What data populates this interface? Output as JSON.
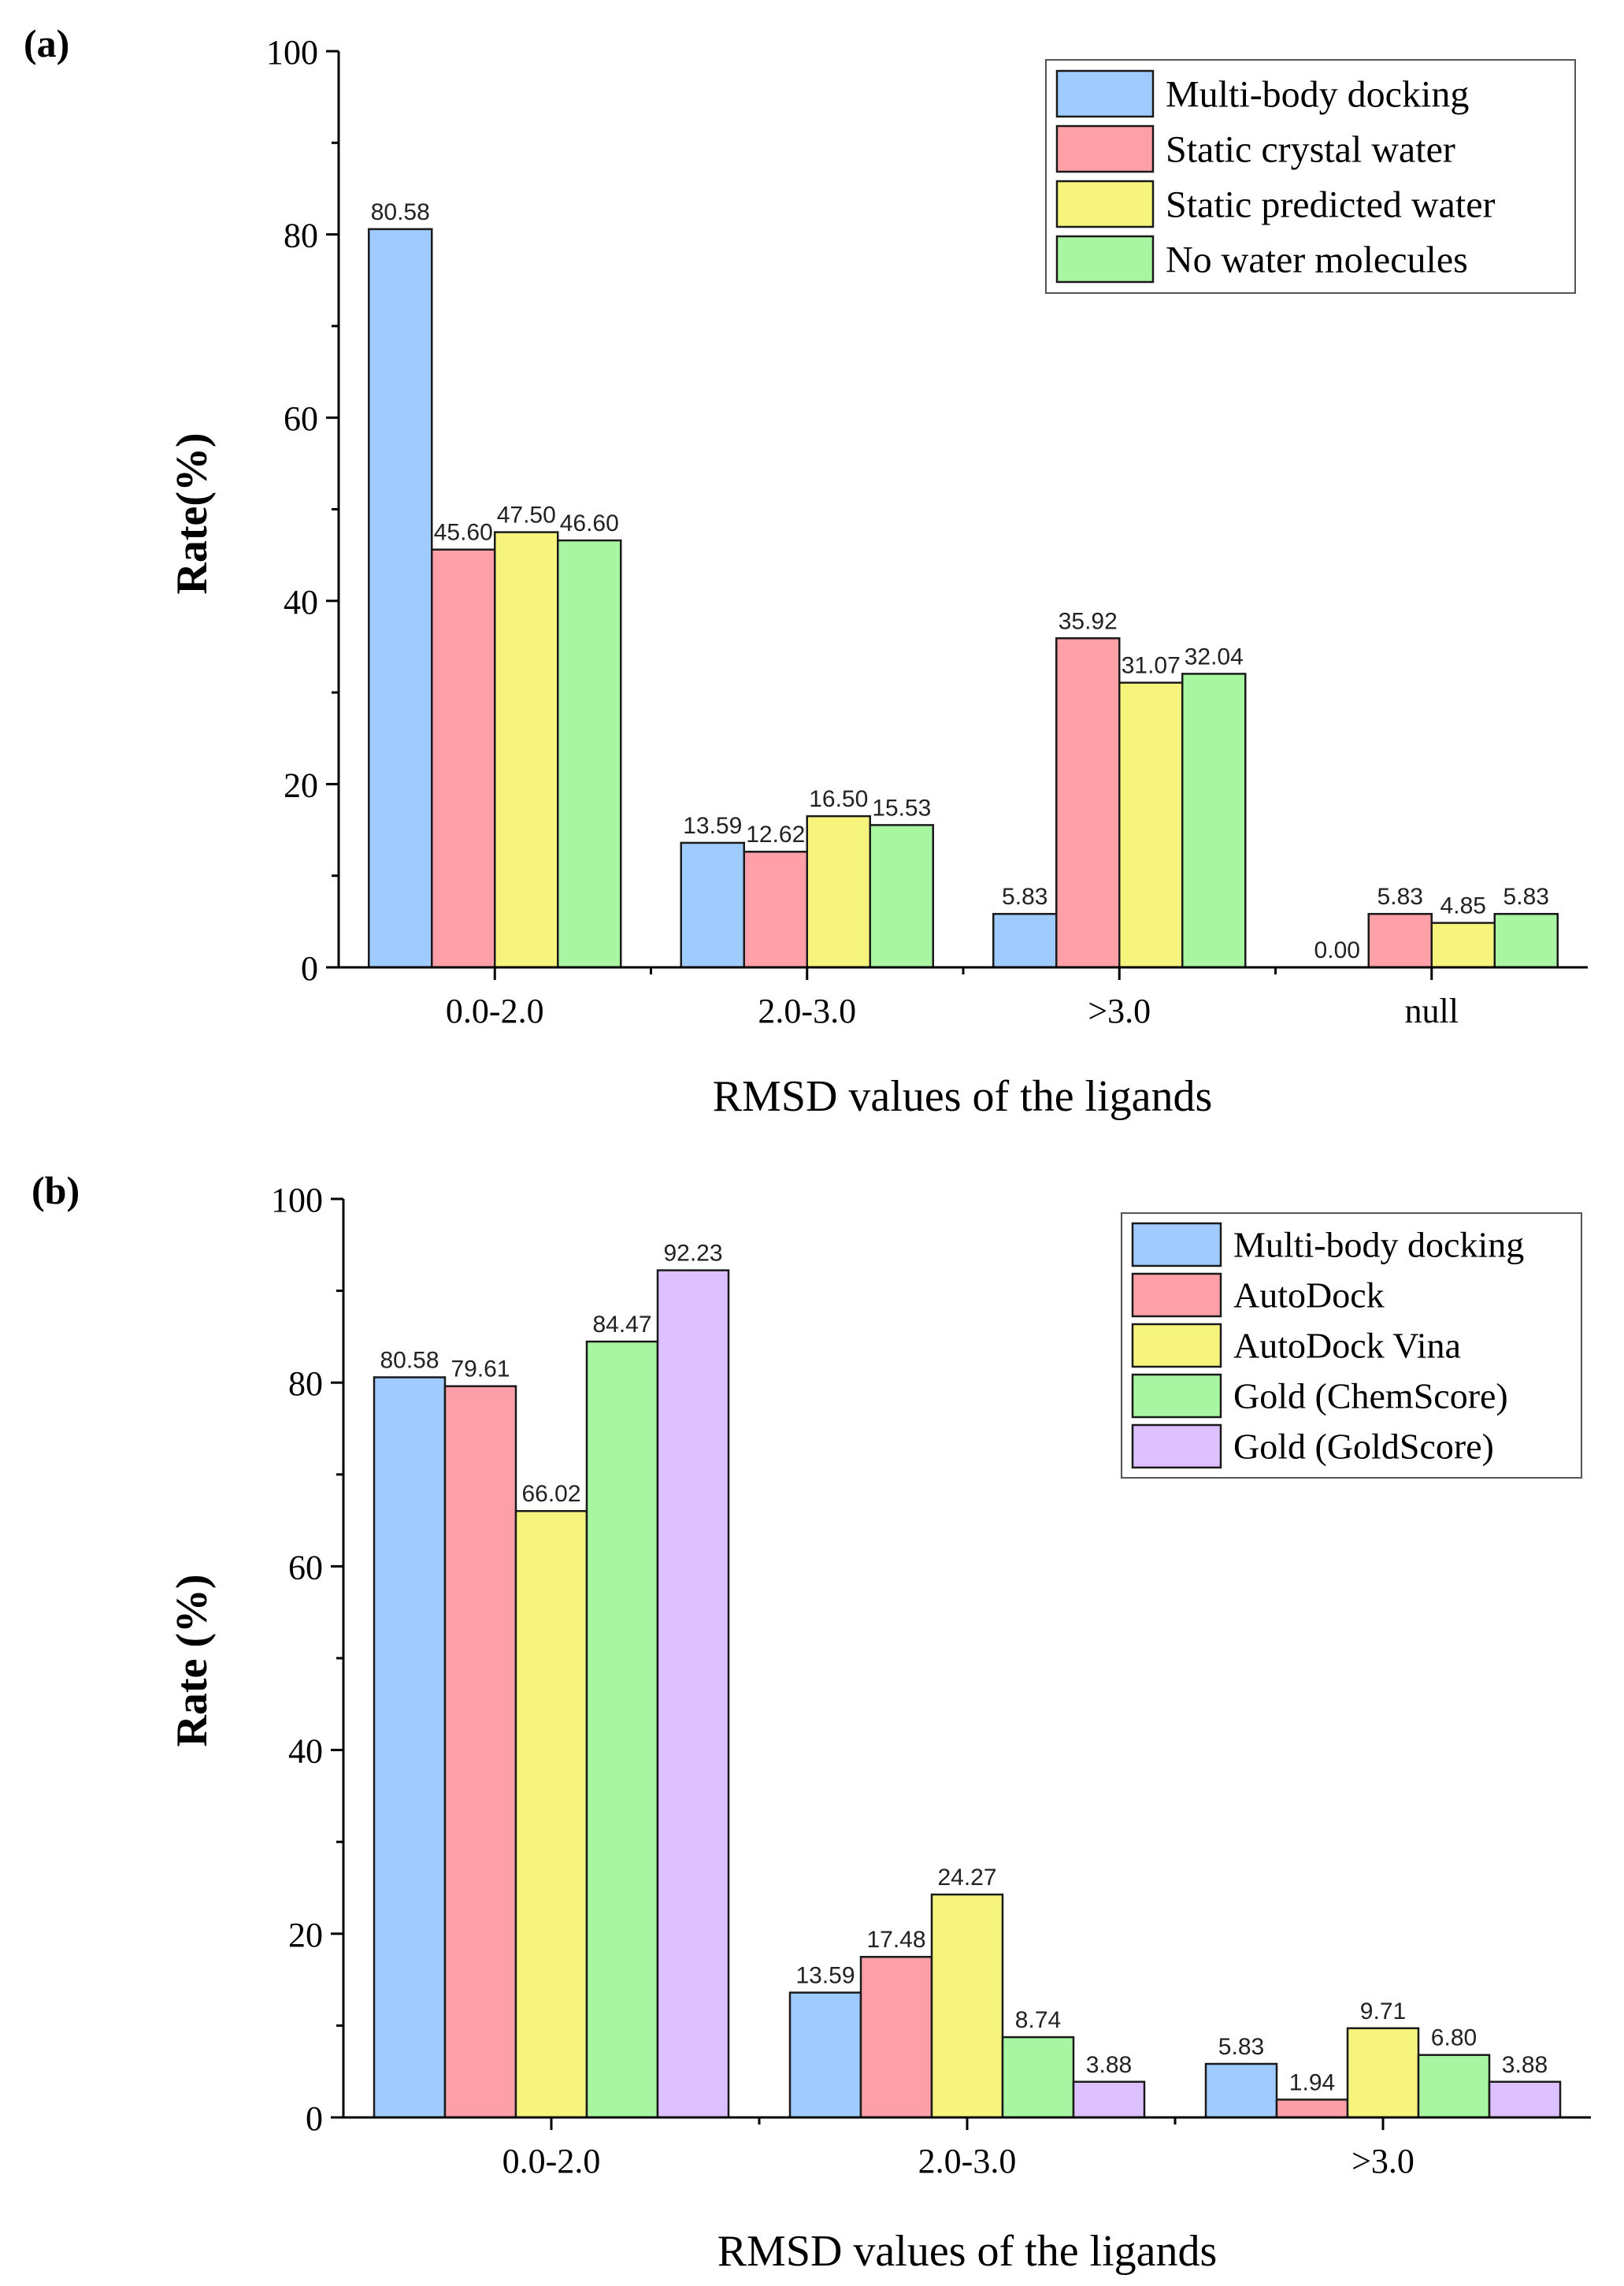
{
  "chart_data": [
    {
      "panel_label": "(a)",
      "type": "bar",
      "title": "",
      "xlabel": "RMSD values of the ligands",
      "ylabel": "Rate(%)",
      "ylim": [
        0,
        100
      ],
      "yticks": [
        "0",
        "20",
        "40",
        "60",
        "80",
        "100"
      ],
      "categories": [
        "0.0-2.0",
        "2.0-3.0",
        ">3.0",
        "null"
      ],
      "legend_position": "top-right",
      "series": [
        {
          "name": "Multi-body docking",
          "color": "#9fcbff",
          "values": [
            80.58,
            13.59,
            5.83,
            0.0
          ],
          "labels": [
            "80.58",
            "13.59",
            "5.83",
            "0.00"
          ]
        },
        {
          "name": "Static crystal water",
          "color": "#ff9fa8",
          "values": [
            45.6,
            12.62,
            35.92,
            5.83
          ],
          "labels": [
            "45.60",
            "12.62",
            "35.92",
            "5.83"
          ]
        },
        {
          "name": "Static predicted water",
          "color": "#f7f47e",
          "values": [
            47.5,
            16.5,
            31.07,
            4.85
          ],
          "labels": [
            "47.50",
            "16.50",
            "31.07",
            "4.85"
          ]
        },
        {
          "name": "No water molecules",
          "color": "#a8f5a2",
          "values": [
            46.6,
            15.53,
            32.04,
            5.83
          ],
          "labels": [
            "46.60",
            "15.53",
            "32.04",
            "5.83"
          ]
        }
      ]
    },
    {
      "panel_label": "(b)",
      "type": "bar",
      "title": "",
      "xlabel": "RMSD values of the ligands",
      "ylabel": "Rate (%)",
      "ylim": [
        0,
        100
      ],
      "yticks": [
        "0",
        "20",
        "40",
        "60",
        "80",
        "100"
      ],
      "categories": [
        "0.0-2.0",
        "2.0-3.0",
        ">3.0"
      ],
      "legend_position": "top-right",
      "series": [
        {
          "name": "Multi-body docking",
          "color": "#9fcbff",
          "values": [
            80.58,
            13.59,
            5.83
          ],
          "labels": [
            "80.58",
            "13.59",
            "5.83"
          ]
        },
        {
          "name": "AutoDock",
          "color": "#ff9fa8",
          "values": [
            79.61,
            17.48,
            1.94
          ],
          "labels": [
            "79.61",
            "17.48",
            "1.94"
          ]
        },
        {
          "name": "AutoDock Vina",
          "color": "#f7f47e",
          "values": [
            66.02,
            24.27,
            9.71
          ],
          "labels": [
            "66.02",
            "24.27",
            "9.71"
          ]
        },
        {
          "name": "Gold (ChemScore)",
          "color": "#a8f5a2",
          "values": [
            84.47,
            8.74,
            6.8
          ],
          "labels": [
            "84.47",
            "8.74",
            "6.80"
          ]
        },
        {
          "name": "Gold (GoldScore)",
          "color": "#dcc0ff",
          "values": [
            92.23,
            3.88,
            3.88
          ],
          "labels": [
            "92.23",
            "3.88",
            "3.88"
          ]
        }
      ]
    }
  ]
}
